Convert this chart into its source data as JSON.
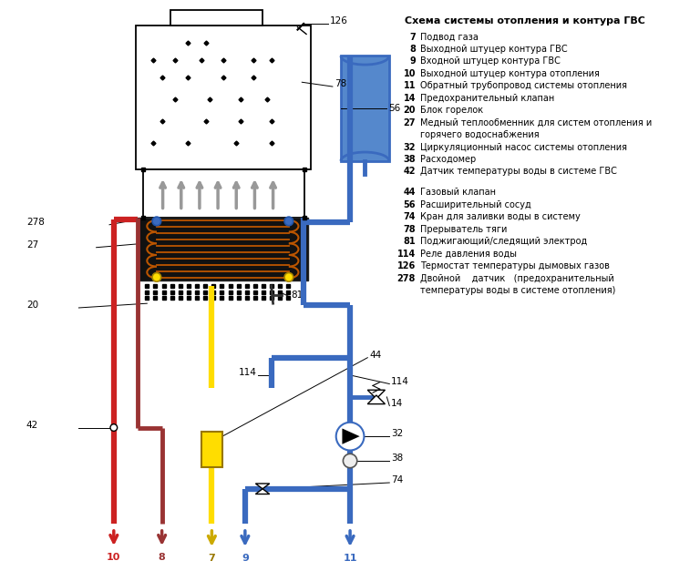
{
  "title": "Схема системы отопления и контура ГВС",
  "bg_color": "#ffffff",
  "legend_g1": [
    [
      "7",
      "Подвод газа"
    ],
    [
      "8",
      "Выходной штуцер контура ГВС"
    ],
    [
      "9",
      "Входной штуцер контура ГВС"
    ],
    [
      "10",
      "Выходной штуцер контура отопления"
    ],
    [
      "11",
      "Обратный трубопровод системы отопления"
    ],
    [
      "14",
      "Предохранительный клапан"
    ],
    [
      "20",
      "Блок горелок"
    ],
    [
      "27",
      "Медный теплообменник для систем отопления и"
    ],
    [
      "",
      "горячего водоснабжения"
    ],
    [
      "32",
      "Циркуляционный насос системы отопления"
    ],
    [
      "38",
      "Расходомер"
    ],
    [
      "42",
      "Датчик температуры воды в системе ГВС"
    ]
  ],
  "legend_g2": [
    [
      "44",
      "Газовый клапан"
    ],
    [
      "56",
      "Расширительный сосуд"
    ],
    [
      "74",
      "Кран для заливки воды в систему"
    ],
    [
      "78",
      "Прерыватель тяги"
    ],
    [
      "81",
      "Поджигающий/следящий электрод"
    ],
    [
      "114",
      "Реле давления воды"
    ],
    [
      "126",
      "Термостат температуры дымовых газов"
    ],
    [
      "278",
      "Двойной    датчик   (предохранительный"
    ],
    [
      "",
      "температуры воды в системе отопления)"
    ]
  ],
  "red": "#cc2222",
  "dred": "#993333",
  "blue": "#3a6abf",
  "yellow": "#ffdd00",
  "black": "#000000",
  "gray": "#aaaaaa",
  "pipe_lw": 3.5
}
